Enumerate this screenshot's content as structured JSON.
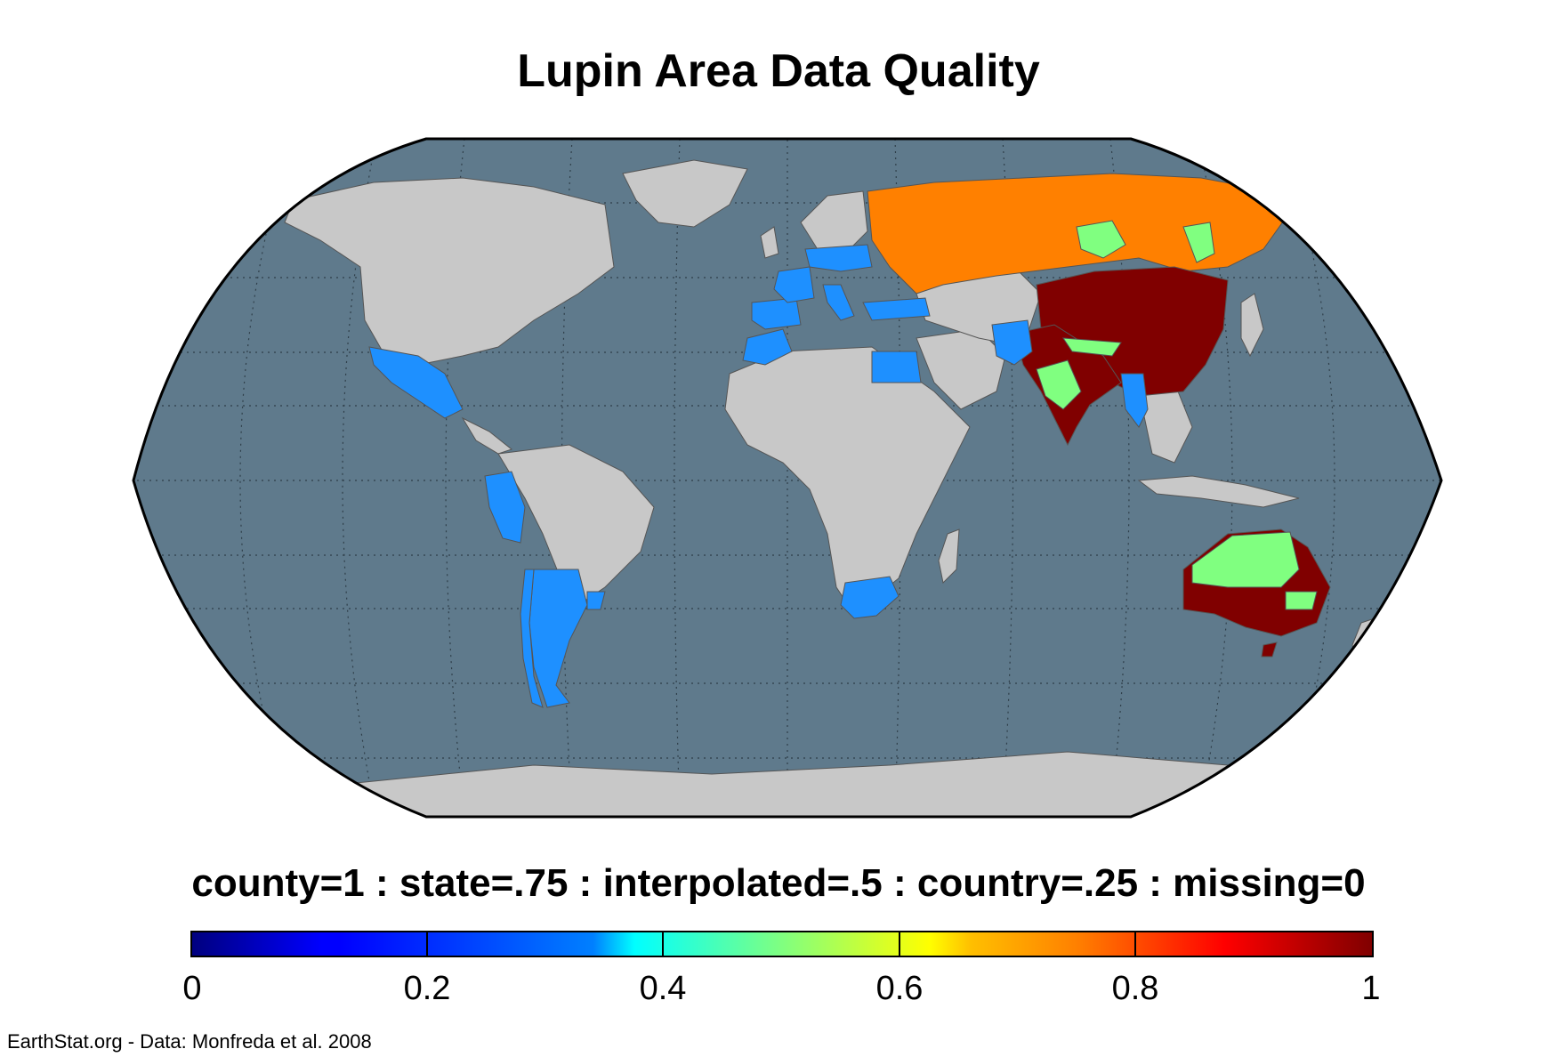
{
  "title": "Lupin Area Data Quality",
  "legend": {
    "caption": "county=1 : state=.75 : interpolated=.5 : country=.25 : missing=0",
    "colormap": "jet",
    "range": [
      0,
      1
    ],
    "ticks": [
      "0",
      "0.2",
      "0.4",
      "0.6",
      "0.8",
      "1"
    ],
    "tick_values": [
      0,
      0.2,
      0.4,
      0.6,
      0.8,
      1
    ]
  },
  "credit": "EarthStat.org - Data: Monfreda et al. 2008",
  "map": {
    "projection": "Robinson",
    "ocean_color": "#5f7a8c",
    "no_data_land_color": "#c8c8c8",
    "graticule": "dotted",
    "regions": [
      {
        "name": "Russia",
        "value": 0.75,
        "color": "#ff8000"
      },
      {
        "name": "China",
        "value": 1,
        "color": "#800000"
      },
      {
        "name": "India",
        "value": 1,
        "color": "#800000"
      },
      {
        "name": "Australia",
        "value": 1,
        "color": "#800000"
      },
      {
        "name": "Australia (parts)",
        "value": 0.5,
        "color": "#80ff80"
      },
      {
        "name": "Russia (parts)",
        "value": 0.5,
        "color": "#80ff80"
      },
      {
        "name": "India (parts)",
        "value": 0.5,
        "color": "#80ff80"
      },
      {
        "name": "Mexico",
        "value": 0.25,
        "color": "#1e90ff"
      },
      {
        "name": "Peru",
        "value": 0.25,
        "color": "#1e90ff"
      },
      {
        "name": "Argentina",
        "value": 0.25,
        "color": "#1e90ff"
      },
      {
        "name": "Chile",
        "value": 0.25,
        "color": "#1e90ff"
      },
      {
        "name": "Uruguay",
        "value": 0.25,
        "color": "#1e90ff"
      },
      {
        "name": "South Africa",
        "value": 0.25,
        "color": "#1e90ff"
      },
      {
        "name": "Egypt",
        "value": 0.25,
        "color": "#1e90ff"
      },
      {
        "name": "Morocco",
        "value": 0.25,
        "color": "#1e90ff"
      },
      {
        "name": "Spain",
        "value": 0.25,
        "color": "#1e90ff"
      },
      {
        "name": "France",
        "value": 0.25,
        "color": "#1e90ff"
      },
      {
        "name": "Italy",
        "value": 0.25,
        "color": "#1e90ff"
      },
      {
        "name": "Germany",
        "value": 0.25,
        "color": "#1e90ff"
      },
      {
        "name": "Poland",
        "value": 0.25,
        "color": "#1e90ff"
      },
      {
        "name": "Greece",
        "value": 0.25,
        "color": "#1e90ff"
      },
      {
        "name": "Syria",
        "value": 0.25,
        "color": "#1e90ff"
      },
      {
        "name": "Pakistan",
        "value": 0.25,
        "color": "#1e90ff"
      },
      {
        "name": "Myanmar",
        "value": 0.25,
        "color": "#1e90ff"
      }
    ]
  }
}
